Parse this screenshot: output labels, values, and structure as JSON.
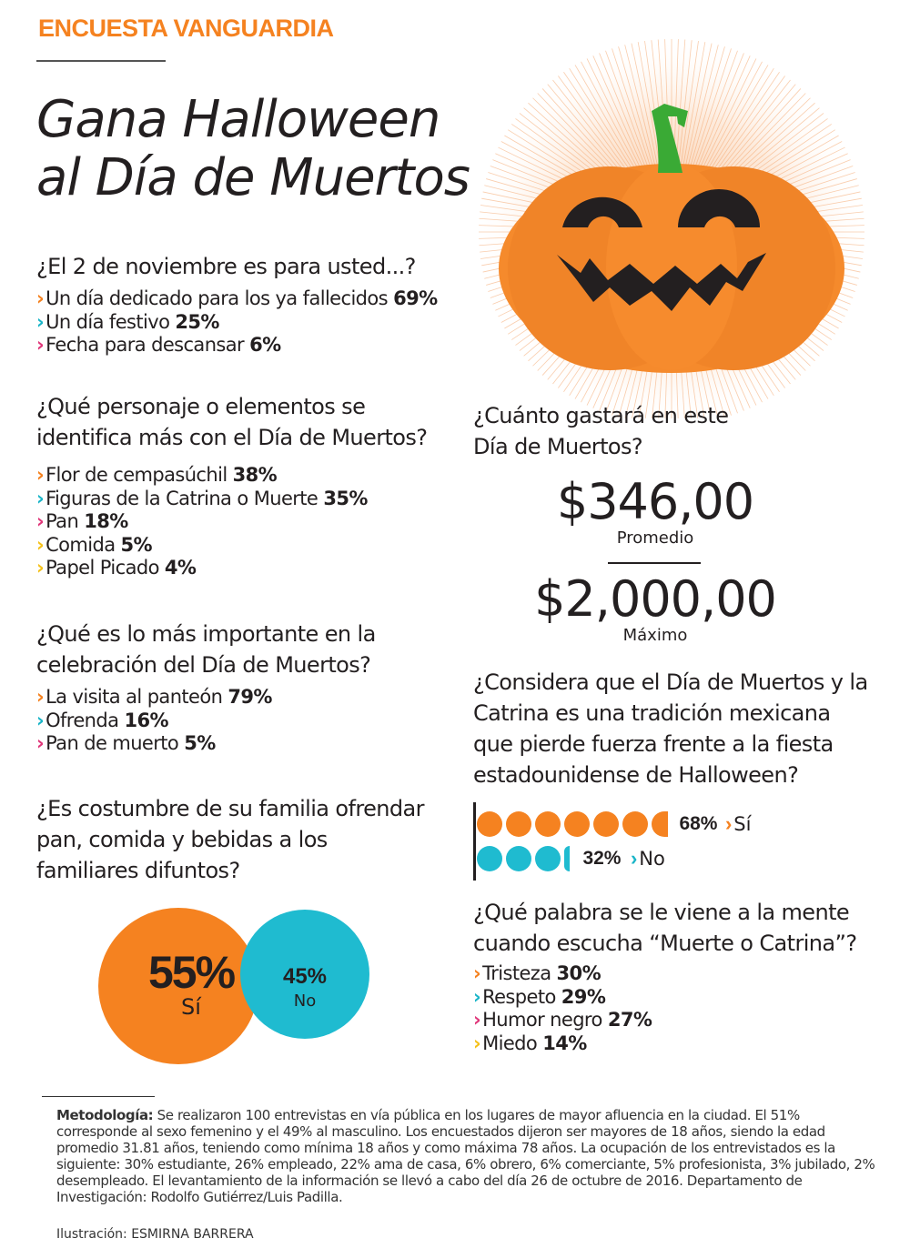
{
  "header": {
    "kicker": "ENCUESTA VANGUARDIA",
    "title_line1": "Gana Halloween",
    "title_line2": "al Día de Muertos"
  },
  "colors": {
    "orange": "#f58220",
    "teal": "#1fbbd0",
    "pink": "#e0377a",
    "yellow": "#f5c11a",
    "green_stem": "#3aaa35",
    "text": "#231f20"
  },
  "q1": {
    "question": "¿El 2 de noviembre es para usted...?",
    "options": [
      {
        "label": "Un día dedicado para los ya fallecidos",
        "pct": "69%"
      },
      {
        "label": "Un día festivo",
        "pct": "25%"
      },
      {
        "label": "Fecha para descansar",
        "pct": "6%"
      }
    ]
  },
  "q2": {
    "question_line1": "¿Qué personaje o elementos se",
    "question_line2": "identifica más con el Día de Muertos?",
    "options": [
      {
        "label": "Flor de cempasúchil",
        "pct": "38%"
      },
      {
        "label": "Figuras de la Catrina o Muerte",
        "pct": "35%"
      },
      {
        "label": "Pan",
        "pct": "18%"
      },
      {
        "label": "Comida",
        "pct": "5%"
      },
      {
        "label": "Papel Picado",
        "pct": "4%"
      }
    ]
  },
  "q3": {
    "question_line1": "¿Qué es lo más importante en la",
    "question_line2": "celebración del Día de Muertos?",
    "options": [
      {
        "label": "La visita al panteón",
        "pct": "79%"
      },
      {
        "label": "Ofrenda",
        "pct": "16%"
      },
      {
        "label": "Pan de muerto",
        "pct": "5%"
      }
    ]
  },
  "q4": {
    "question_line1": "¿Es costumbre de su familia ofrendar",
    "question_line2": "pan, comida y bebidas a los",
    "question_line3": "familiares difuntos?",
    "yes_pct": "55%",
    "yes_label": "Sí",
    "no_pct": "45%",
    "no_label": "No"
  },
  "q5": {
    "question_line1": "¿Cuánto gastará en este",
    "question_line2": "Día de Muertos?",
    "average_value": "$346,00",
    "average_label": "Promedio",
    "max_value": "$2,000,00",
    "max_label": "Máximo"
  },
  "q6": {
    "question_line1": "¿Considera que el Día de Muertos y la",
    "question_line2": "Catrina es una tradición mexicana",
    "question_line3": "que pierde fuerza frente a la fiesta",
    "question_line4": "estadounidense de Halloween?",
    "yes_pct": "68%",
    "yes_label": "Sí",
    "no_pct": "32%",
    "no_label": "No"
  },
  "q7": {
    "question_line1": "¿Qué palabra se le viene a la mente",
    "question_line2": "cuando escucha “Muerte o Catrina”?",
    "options": [
      {
        "label": "Tristeza",
        "pct": "30%"
      },
      {
        "label": "Respeto",
        "pct": "29%"
      },
      {
        "label": "Humor negro",
        "pct": "27%"
      },
      {
        "label": "Miedo",
        "pct": "14%"
      }
    ]
  },
  "footer": {
    "method_label": "Metodología:",
    "method_text": " Se realizaron 100 entrevistas en vía pública en los lugares de mayor afluencia en la ciudad. El 51% corresponde al sexo femenino y el 49% al masculino. Los encuestados dijeron ser mayores de 18 años, siendo la edad promedio 31.81 años, teniendo como mínima 18 años y como máxima 78 años. La ocupación de los entrevistados es la siguiente: 30% estudiante, 26% empleado, 22% ama de casa, 6% obrero, 6% comerciante, 5% profesionista, 3% jubilado, 2% desempleado. El levantamiento de la información se llevó a cabo del día 26 de octubre de 2016. Departamento de Investigación: Rodolfo Gutiérrez/Luis Padilla.",
    "credit_label": "Ilustración: ",
    "credit_name": "ESMIRNA BARRERA"
  },
  "chart_data": [
    {
      "type": "table",
      "title": "¿El 2 de noviembre es para usted...?",
      "categories": [
        "Un día dedicado para los ya fallecidos",
        "Un día festivo",
        "Fecha para descansar"
      ],
      "values": [
        69,
        25,
        6
      ]
    },
    {
      "type": "table",
      "title": "¿Qué personaje o elementos se identifica más con el Día de Muertos?",
      "categories": [
        "Flor de cempasúchil",
        "Figuras de la Catrina o Muerte",
        "Pan",
        "Comida",
        "Papel Picado"
      ],
      "values": [
        38,
        35,
        18,
        5,
        4
      ]
    },
    {
      "type": "table",
      "title": "¿Qué es lo más importante en la celebración del Día de Muertos?",
      "categories": [
        "La visita al panteón",
        "Ofrenda",
        "Pan de muerto"
      ],
      "values": [
        79,
        16,
        5
      ]
    },
    {
      "type": "pie",
      "title": "¿Es costumbre de su familia ofrendar pan, comida y bebidas a los familiares difuntos?",
      "categories": [
        "Sí",
        "No"
      ],
      "values": [
        55,
        45
      ]
    },
    {
      "type": "table",
      "title": "¿Cuánto gastará en este Día de Muertos?",
      "categories": [
        "Promedio",
        "Máximo"
      ],
      "values": [
        346.0,
        2000.0
      ]
    },
    {
      "type": "bar",
      "title": "¿Considera que el Día de Muertos y la Catrina es una tradición mexicana que pierde fuerza frente a la fiesta estadounidense de Halloween?",
      "categories": [
        "Sí",
        "No"
      ],
      "values": [
        68,
        32
      ]
    },
    {
      "type": "table",
      "title": "¿Qué palabra se le viene a la mente cuando escucha “Muerte o Catrina”?",
      "categories": [
        "Tristeza",
        "Respeto",
        "Humor negro",
        "Miedo"
      ],
      "values": [
        30,
        29,
        27,
        14
      ]
    }
  ]
}
